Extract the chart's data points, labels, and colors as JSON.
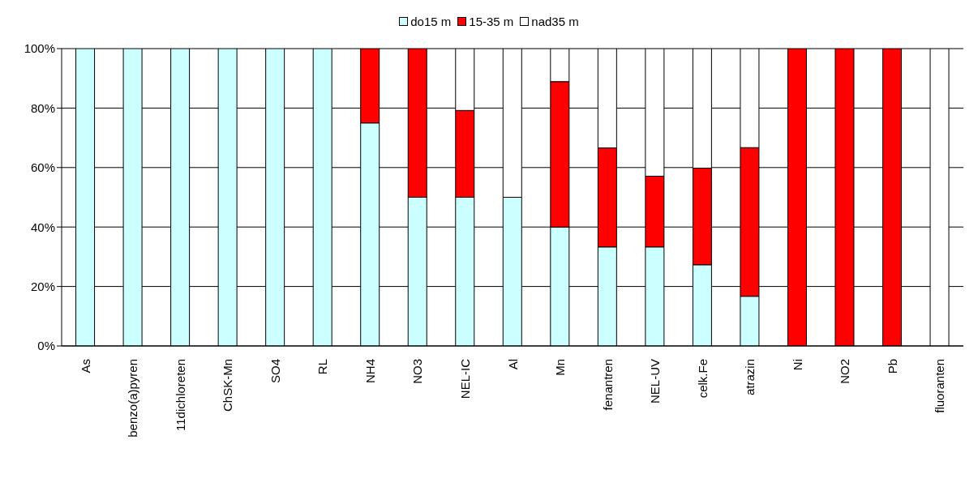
{
  "chart_data": {
    "type": "bar",
    "stacked": true,
    "legend": "top",
    "grid": "y",
    "categories": [
      "As",
      "benzo(a)pyren",
      "11dichloreten",
      "ChSK-Mn",
      "SO4",
      "RL",
      "NH4",
      "NO3",
      "NEL-IC",
      "Al",
      "Mn",
      "fenantren",
      "NEL-UV",
      "celk.Fe",
      "atrazin",
      "Ni",
      "NO2",
      "Pb",
      "fluoranten"
    ],
    "series": [
      {
        "name": "do15 m",
        "color": "#ccffff",
        "values": [
          100,
          100,
          100,
          100,
          100,
          100,
          75,
          50,
          50,
          50,
          40,
          33.3,
          33.3,
          27.3,
          16.7,
          0,
          0,
          0,
          0
        ]
      },
      {
        "name": "15-35 m",
        "color": "#ff0000",
        "values": [
          0,
          0,
          0,
          0,
          0,
          0,
          25,
          50,
          29.2,
          0,
          48.9,
          33.3,
          23.8,
          32.5,
          50,
          100,
          100,
          100,
          0
        ]
      },
      {
        "name": "nad35 m",
        "color": "#ffffff",
        "values": [
          0,
          0,
          0,
          0,
          0,
          0,
          0,
          0,
          20.8,
          50,
          11.1,
          33.4,
          42.9,
          40.2,
          33.3,
          0,
          0,
          0,
          100
        ]
      }
    ],
    "ylim": [
      0,
      100
    ],
    "yticks": [
      {
        "value": 0,
        "label": "0%"
      },
      {
        "value": 20,
        "label": "20%"
      },
      {
        "value": 40,
        "label": "40%"
      },
      {
        "value": 60,
        "label": "60%"
      },
      {
        "value": 80,
        "label": "80%"
      },
      {
        "value": 100,
        "label": "100%"
      }
    ]
  }
}
